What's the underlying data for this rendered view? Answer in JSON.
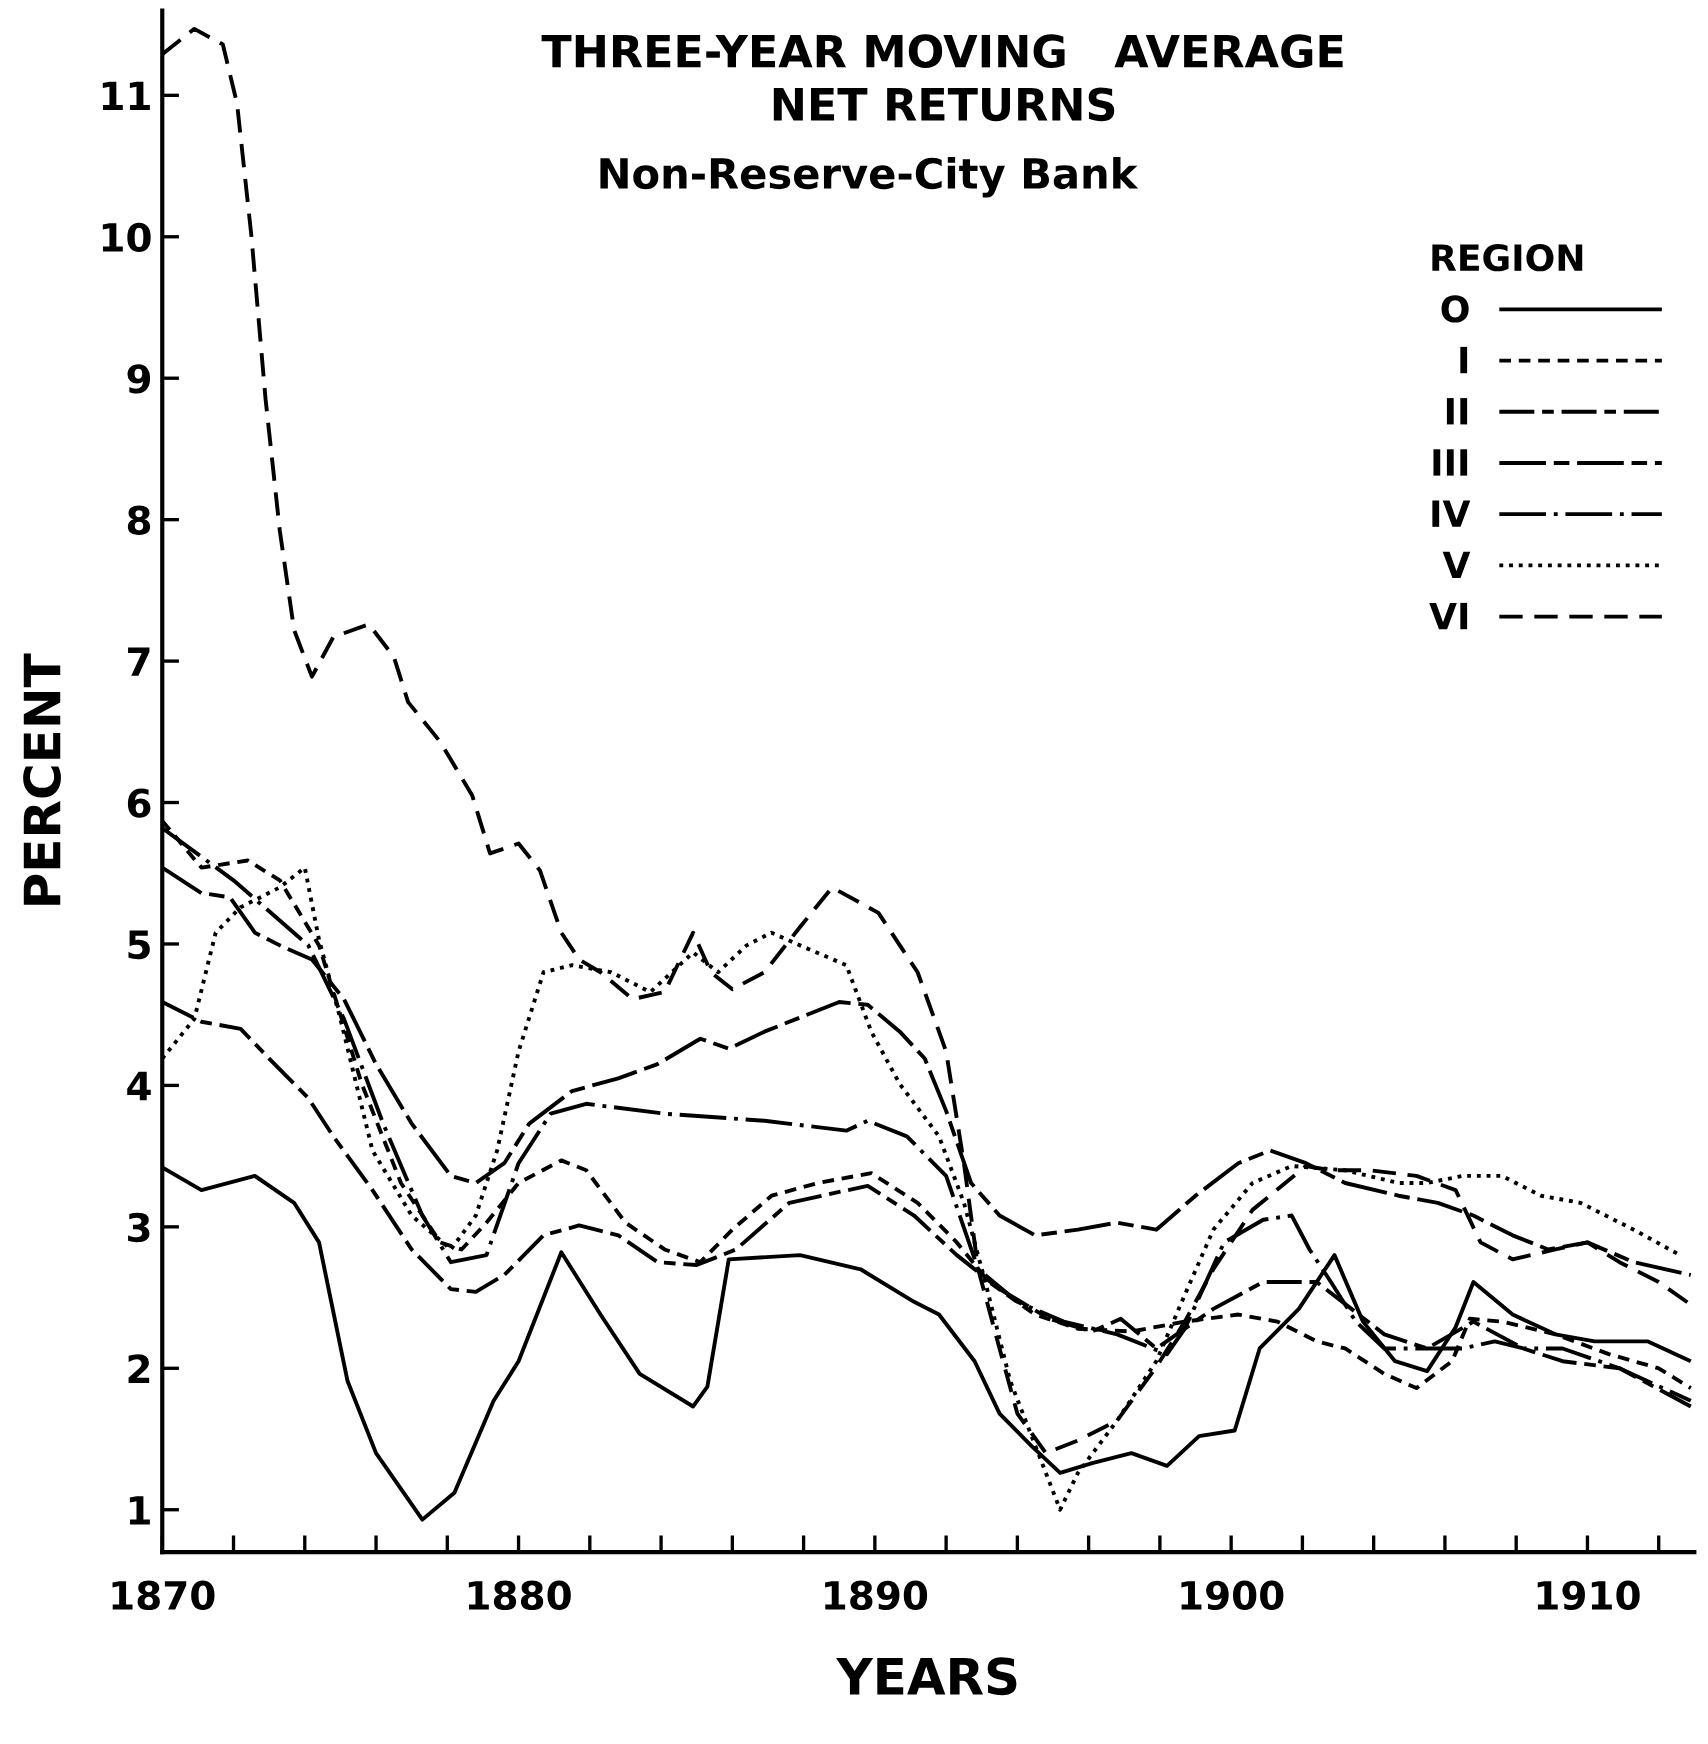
{
  "chart_data": {
    "type": "line",
    "title": "THREE-YEAR MOVING   AVERAGE\nNET RETURNS",
    "subtitle": "Non-Reserve-City Bank",
    "xlabel": "YEARS",
    "ylabel": "PERCENT",
    "legend_title": "REGION",
    "xlim": [
      1870,
      1913
    ],
    "ylim": [
      0.7,
      11.6
    ],
    "xticks": [
      1870,
      {
        "value": 1872,
        "label": null
      },
      {
        "value": 1874,
        "label": null
      },
      {
        "value": 1876,
        "label": null
      },
      {
        "value": 1878,
        "label": null
      },
      1880,
      {
        "value": 1882,
        "label": null
      },
      {
        "value": 1884,
        "label": null
      },
      {
        "value": 1886,
        "label": null
      },
      {
        "value": 1888,
        "label": null
      },
      1890,
      {
        "value": 1892,
        "label": null
      },
      {
        "value": 1894,
        "label": null
      },
      {
        "value": 1896,
        "label": null
      },
      {
        "value": 1898,
        "label": null
      },
      1900,
      {
        "value": 1902,
        "label": null
      },
      {
        "value": 1904,
        "label": null
      },
      {
        "value": 1906,
        "label": null
      },
      {
        "value": 1908,
        "label": null
      },
      1910,
      {
        "value": 1912,
        "label": null
      }
    ],
    "yticks": [
      1,
      2,
      3,
      4,
      5,
      6,
      7,
      8,
      9,
      10,
      11
    ],
    "grid": false,
    "legend": "top right",
    "marker": "none",
    "series": [
      {
        "name": "O",
        "color": "#000000",
        "line_style": "solid",
        "x": [
          1870,
          1871.1,
          1872.6,
          1873.7,
          1874.4,
          1875.2,
          1876,
          1877.3,
          1878.2,
          1879.3,
          1880,
          1881.2,
          1882.3,
          1883.4,
          1884.9,
          1885.3,
          1885.9,
          1887.9,
          1889.6,
          1891.1,
          1891.8,
          1892.8,
          1893.5,
          1894.4,
          1895.2,
          1896.1,
          1897.2,
          1898.2,
          1899.1,
          1900.1,
          1900.8,
          1901.9,
          1902.9,
          1903.7,
          1904.6,
          1905.5,
          1906.3,
          1906.8,
          1907.9,
          1909.1,
          1910.2,
          1911.7,
          1912.9
        ],
        "values": [
          3.42,
          3.26,
          3.36,
          3.17,
          2.89,
          1.91,
          1.4,
          0.93,
          1.12,
          1.77,
          2.05,
          2.82,
          2.38,
          1.96,
          1.73,
          1.87,
          2.77,
          2.8,
          2.7,
          2.47,
          2.38,
          2.05,
          1.68,
          1.45,
          1.26,
          1.33,
          1.4,
          1.31,
          1.52,
          1.56,
          2.14,
          2.42,
          2.8,
          2.33,
          2.05,
          1.98,
          2.29,
          2.61,
          2.38,
          2.24,
          2.19,
          2.19,
          2.05
        ]
      },
      {
        "name": "I",
        "color": "#000000",
        "line_style": "dashed",
        "x": [
          1870,
          1871.1,
          1872.4,
          1873.3,
          1874.4,
          1875.6,
          1876.7,
          1877.8,
          1878.4,
          1879.1,
          1880,
          1881.2,
          1881.9,
          1883,
          1884.1,
          1885.1,
          1886,
          1887.1,
          1888.4,
          1889.9,
          1891.2,
          1892.3,
          1893.2,
          1894.5,
          1895.7,
          1897.2,
          1898.7,
          1900.2,
          1901.3,
          1902.4,
          1903.2,
          1904.3,
          1905.2,
          1906.2,
          1906.7,
          1907.6,
          1909.1,
          1910.6,
          1912,
          1912.9
        ],
        "values": [
          5.87,
          5.54,
          5.59,
          5.45,
          4.99,
          4.01,
          3.31,
          2.89,
          2.84,
          3.03,
          3.31,
          3.47,
          3.4,
          3.03,
          2.84,
          2.75,
          2.98,
          3.22,
          3.31,
          3.38,
          3.17,
          2.89,
          2.61,
          2.38,
          2.28,
          2.26,
          2.33,
          2.38,
          2.33,
          2.19,
          2.14,
          1.96,
          1.86,
          2.05,
          2.35,
          2.33,
          2.24,
          2.1,
          2.0,
          1.86
        ]
      },
      {
        "name": "II",
        "color": "#000000",
        "line_style": "dashdot",
        "x": [
          1870,
          1871.1,
          1872.2,
          1873,
          1874.1,
          1874.8,
          1875.9,
          1877,
          1878.1,
          1878.8,
          1879.6,
          1880.7,
          1881.7,
          1882.8,
          1883.9,
          1885,
          1886.1,
          1887.6,
          1889.8,
          1891.1,
          1892.3,
          1893.5,
          1894.9,
          1896.1,
          1896.9,
          1897.9,
          1898.7,
          1899.5,
          1900.9,
          1902.4,
          1904.3,
          1905.5,
          1906.8,
          1908.2,
          1909.3,
          1910.9,
          1912.9
        ],
        "values": [
          4.59,
          4.45,
          4.4,
          4.19,
          3.91,
          3.64,
          3.26,
          2.84,
          2.56,
          2.54,
          2.66,
          2.94,
          3.01,
          2.94,
          2.75,
          2.73,
          2.84,
          3.17,
          3.29,
          3.08,
          2.8,
          2.56,
          2.35,
          2.26,
          2.35,
          2.14,
          2.28,
          2.42,
          2.61,
          2.61,
          2.24,
          2.14,
          2.33,
          2.14,
          2.05,
          2.0,
          1.73
        ]
      },
      {
        "name": "III",
        "color": "#000000",
        "line_style": "longdash",
        "x": [
          1870,
          1871.1,
          1871.9,
          1872.6,
          1873.3,
          1874.2,
          1875.1,
          1876,
          1877,
          1878.1,
          1878.8,
          1879.6,
          1880.3,
          1881.5,
          1882.8,
          1883.9,
          1885.1,
          1885.9,
          1886.9,
          1889,
          1889.8,
          1890.7,
          1891.4,
          1892,
          1892.7,
          1893.5,
          1894.5,
          1895.7,
          1896.8,
          1897.9,
          1899,
          1900.2,
          1901.1,
          1902.1,
          1903.2,
          1904.7,
          1905.8,
          1906.8,
          1907.9,
          1908.9,
          1910,
          1911.3,
          1912.9
        ],
        "values": [
          5.54,
          5.36,
          5.33,
          5.08,
          4.99,
          4.89,
          4.61,
          4.15,
          3.73,
          3.36,
          3.31,
          3.45,
          3.73,
          3.96,
          4.05,
          4.15,
          4.33,
          4.26,
          4.38,
          4.59,
          4.57,
          4.38,
          4.19,
          3.82,
          3.31,
          3.08,
          2.94,
          2.98,
          3.03,
          2.98,
          3.22,
          3.45,
          3.54,
          3.45,
          3.31,
          3.22,
          3.17,
          3.08,
          2.94,
          2.84,
          2.89,
          2.75,
          2.66
        ]
      },
      {
        "name": "IV",
        "color": "#000000",
        "line_style": "longdashdot",
        "x": [
          1870,
          1872,
          1874.1,
          1875.1,
          1876.2,
          1877.3,
          1878.1,
          1879.1,
          1880,
          1880.9,
          1881.9,
          1884.1,
          1886.9,
          1889.2,
          1889.8,
          1890.9,
          1892,
          1892.9,
          1894,
          1895.3,
          1896.8,
          1898.2,
          1898.7,
          1899.8,
          1900.9,
          1901.7,
          1902.2,
          1902.8,
          1903.5,
          1904.3,
          1905.5,
          1906.5,
          1907.4,
          1908.2,
          1909.3,
          1910.9,
          1912.9
        ],
        "values": [
          5.82,
          5.45,
          4.99,
          4.47,
          3.73,
          3.08,
          2.75,
          2.8,
          3.45,
          3.8,
          3.87,
          3.8,
          3.75,
          3.68,
          3.75,
          3.64,
          3.36,
          2.7,
          2.47,
          2.33,
          2.24,
          2.1,
          2.28,
          2.89,
          3.05,
          3.08,
          2.84,
          2.61,
          2.33,
          2.14,
          2.14,
          2.14,
          2.19,
          2.14,
          2.14,
          2.0,
          1.77
        ]
      },
      {
        "name": "V",
        "color": "#000000",
        "line_style": "dotted",
        "x": [
          1870,
          1870.9,
          1871.5,
          1872.2,
          1873.3,
          1874,
          1874.4,
          1875,
          1875.9,
          1877,
          1878.1,
          1878.8,
          1879.4,
          1880,
          1880.7,
          1881.5,
          1882.6,
          1883.7,
          1884.9,
          1885.6,
          1886.4,
          1887.1,
          1887.9,
          1889.2,
          1889.9,
          1890.7,
          1891.8,
          1892.5,
          1893.1,
          1893.8,
          1894.8,
          1895.2,
          1895.7,
          1896.8,
          1897.9,
          1898.7,
          1899.5,
          1900.6,
          1901.7,
          1903.2,
          1904.7,
          1905.5,
          1906.5,
          1907.6,
          1908.7,
          1909.8,
          1911.3,
          1912.6
        ],
        "values": [
          4.19,
          4.47,
          5.08,
          5.26,
          5.4,
          5.54,
          5.03,
          4.47,
          3.54,
          3.08,
          2.84,
          3.08,
          3.54,
          4.24,
          4.8,
          4.85,
          4.8,
          4.66,
          4.94,
          4.8,
          4.99,
          5.08,
          4.99,
          4.85,
          4.38,
          4.01,
          3.64,
          3.17,
          2.61,
          1.91,
          1.26,
          1.0,
          1.26,
          1.63,
          2.05,
          2.52,
          2.98,
          3.31,
          3.43,
          3.4,
          3.31,
          3.31,
          3.36,
          3.36,
          3.22,
          3.17,
          2.98,
          2.8
        ]
      },
      {
        "name": "VI",
        "color": "#000000",
        "line_style": "loosedash",
        "x": [
          1870,
          1870.9,
          1871.7,
          1872.1,
          1872.5,
          1872.9,
          1873.3,
          1873.7,
          1874.2,
          1874.8,
          1875.8,
          1876.5,
          1876.9,
          1877.8,
          1878.7,
          1879.2,
          1880,
          1880.6,
          1881.2,
          1881.7,
          1882.3,
          1883.2,
          1884.1,
          1884.9,
          1885.4,
          1886,
          1886.9,
          1887.9,
          1888.8,
          1890.1,
          1891.2,
          1892,
          1892.5,
          1892.9,
          1893.5,
          1894,
          1894.8,
          1895.7,
          1896.8,
          1897.9,
          1898.7,
          1899.5,
          1900.6,
          1902.1,
          1902.8,
          1903.9,
          1905.2,
          1906.3,
          1907,
          1907.9,
          1909.1,
          1910,
          1910.9,
          1912,
          1912.9
        ],
        "values": [
          11.29,
          11.47,
          11.36,
          10.94,
          10.01,
          8.85,
          7.92,
          7.22,
          6.89,
          7.17,
          7.26,
          7.03,
          6.71,
          6.43,
          6.05,
          5.64,
          5.71,
          5.52,
          5.08,
          4.89,
          4.8,
          4.61,
          4.66,
          5.08,
          4.8,
          4.68,
          4.8,
          5.12,
          5.4,
          5.22,
          4.8,
          4.24,
          3.45,
          2.7,
          2.14,
          1.68,
          1.4,
          1.49,
          1.63,
          2.01,
          2.33,
          2.7,
          3.12,
          3.43,
          3.4,
          3.4,
          3.36,
          3.26,
          2.89,
          2.77,
          2.84,
          2.89,
          2.75,
          2.61,
          2.45
        ]
      }
    ]
  }
}
